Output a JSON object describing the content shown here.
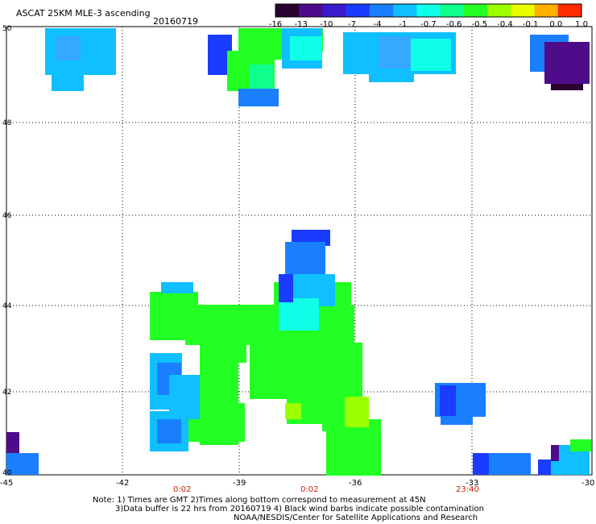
{
  "title": "ASCAT 25KM MLE-3 ascending",
  "date": "20160719",
  "colorbar": {
    "labels": [
      "-16",
      "-13",
      "-10",
      "-7",
      "-4",
      "-1",
      "-0.7",
      "-0.6",
      "-0.5",
      "-0.4",
      "-0.1",
      "0.0",
      "1.0"
    ],
    "colors": [
      "#2a0430",
      "#4e0b8a",
      "#3a1acc",
      "#1a3cff",
      "#1a7fff",
      "#0fbfff",
      "#0fffe8",
      "#0fff8c",
      "#22ff22",
      "#9bff00",
      "#e8ff00",
      "#ffb000",
      "#ff2a00"
    ]
  },
  "axes": {
    "lon_ticks": [
      "-45",
      "-42",
      "-39",
      "-36",
      "-33",
      "-30"
    ],
    "lat_ticks": [
      "50",
      "48",
      "46",
      "44",
      "42",
      "40"
    ]
  },
  "time_labels": [
    "0:02",
    "0:02",
    "23:40"
  ],
  "note_lines": [
    "Note: 1) Times are GMT 2)Times along bottom correspond to measurement at 45N",
    "3)Data buffer is 22 hrs from 20160719 4) Black wind barbs indicate possible contamination",
    "NOAA/NESDIS/Center for Satellite Applications and Research"
  ],
  "palette": {
    "purple": "#4e0b8a",
    "dark_purple": "#2a0430",
    "blue": "#1a3cff",
    "mid_blue": "#1a7fff",
    "sky": "#0fbfff",
    "cyan": "#0fffe8",
    "aqua_green": "#0fff8c",
    "green": "#22ff22",
    "lime": "#9bff00",
    "time_red": "#c81e00"
  }
}
